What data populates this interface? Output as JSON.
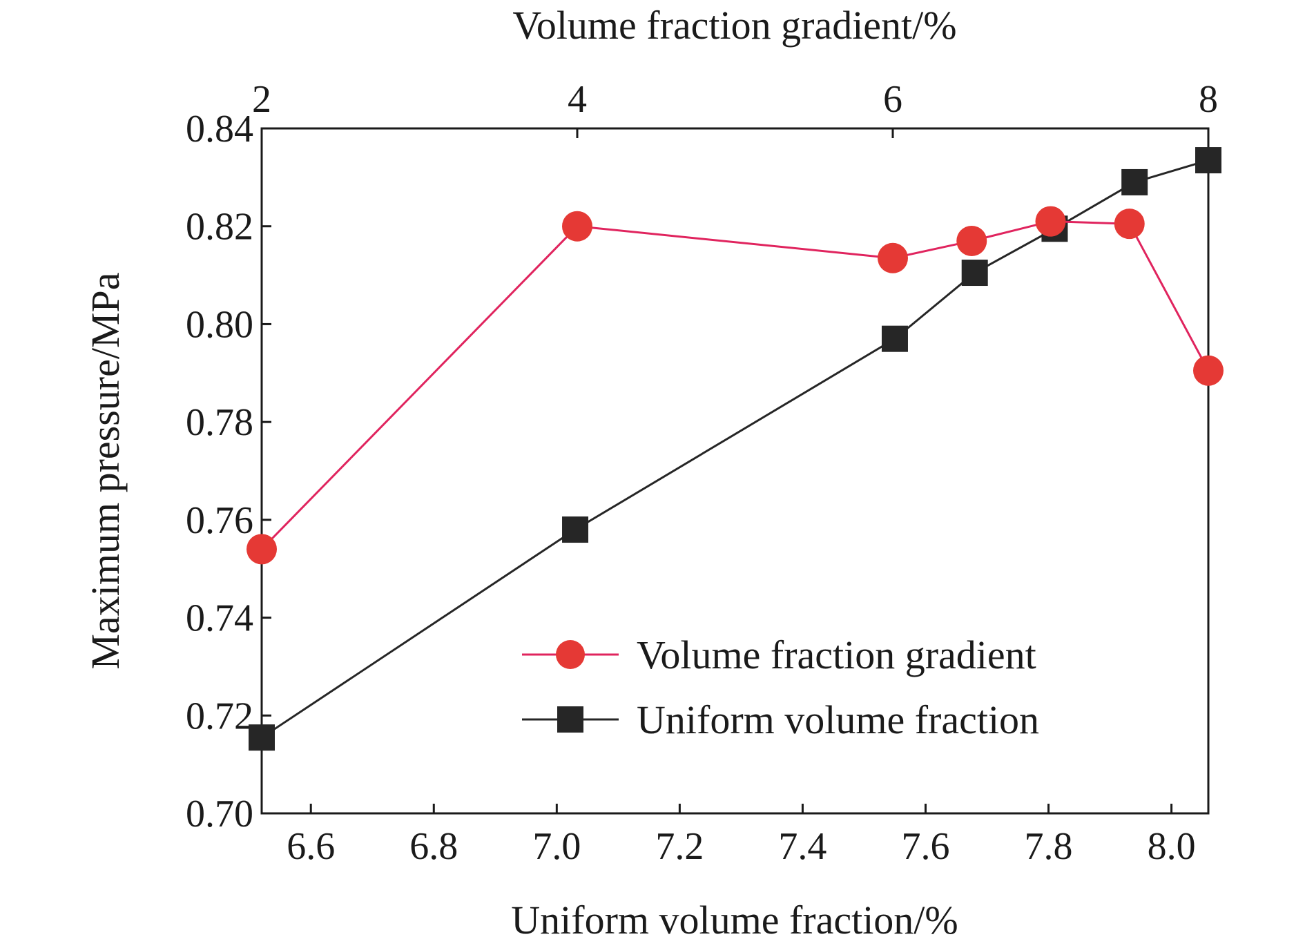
{
  "chart_data": {
    "type": "line",
    "title": "",
    "xlabel": "Uniform volume fraction/%",
    "x2label": "Volume fraction gradient/%",
    "ylabel": "Maximum pressure/MPa",
    "xlim": [
      6.52,
      8.06
    ],
    "x2lim": [
      2,
      8
    ],
    "ylim": [
      0.7,
      0.84
    ],
    "xticks": [
      "6.6",
      "6.8",
      "7.0",
      "7.2",
      "7.4",
      "7.6",
      "7.8",
      "8.0"
    ],
    "x2ticks": [
      "2",
      "4",
      "6",
      "8"
    ],
    "yticks": [
      "0.70",
      "0.72",
      "0.74",
      "0.76",
      "0.78",
      "0.80",
      "0.82",
      "0.84"
    ],
    "grid": false,
    "legend_position": "lower-right",
    "series": [
      {
        "name": "Volume fraction gradient",
        "axis": "top",
        "marker": "circle",
        "color": "#e53935",
        "line_color": "#e0245e",
        "x": [
          2,
          4,
          6,
          6.5,
          7,
          7.5,
          8
        ],
        "y": [
          0.754,
          0.82,
          0.8135,
          0.817,
          0.821,
          0.8205,
          0.7905
        ]
      },
      {
        "name": "Uniform volume fraction",
        "axis": "bottom",
        "marker": "square",
        "color": "#262626",
        "line_color": "#262626",
        "x": [
          6.52,
          7.03,
          7.55,
          7.68,
          7.81,
          7.94,
          8.06
        ],
        "y": [
          0.7155,
          0.758,
          0.797,
          0.8105,
          0.8195,
          0.829,
          0.8335
        ]
      }
    ]
  }
}
